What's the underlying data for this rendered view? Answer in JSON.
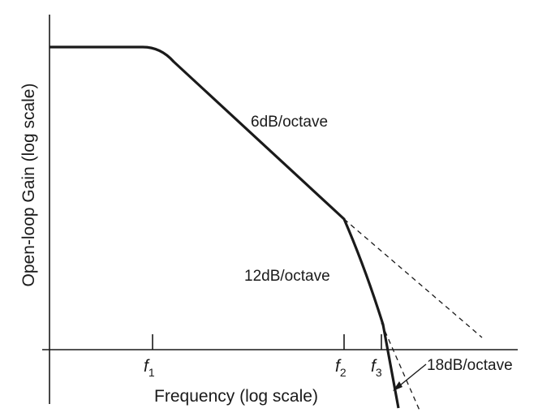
{
  "chart_data": {
    "type": "line",
    "title": "",
    "xlabel": "Frequency (log scale)",
    "ylabel": "Open-loop Gain (log scale)",
    "x_scale": "log",
    "y_scale": "log",
    "grid": false,
    "legend": "none",
    "xticks": [
      {
        "base": "f",
        "sub": "1"
      },
      {
        "base": "f",
        "sub": "2"
      },
      {
        "base": "f",
        "sub": "3"
      }
    ],
    "series": [
      {
        "style": "solid",
        "segments": [
          "flat",
          "6dB/octave",
          "12dB/octave",
          "18dB/octave"
        ]
      },
      {
        "style": "dashed",
        "segments": [
          "6dB/octave extension",
          "12dB/octave extension"
        ]
      }
    ],
    "annotations": [
      {
        "text": "6dB/octave"
      },
      {
        "text": "12dB/octave"
      },
      {
        "text": "18dB/octave",
        "arrow": true
      }
    ]
  },
  "colors": {
    "ink": "#1a1a1a",
    "background": "#ffffff"
  }
}
